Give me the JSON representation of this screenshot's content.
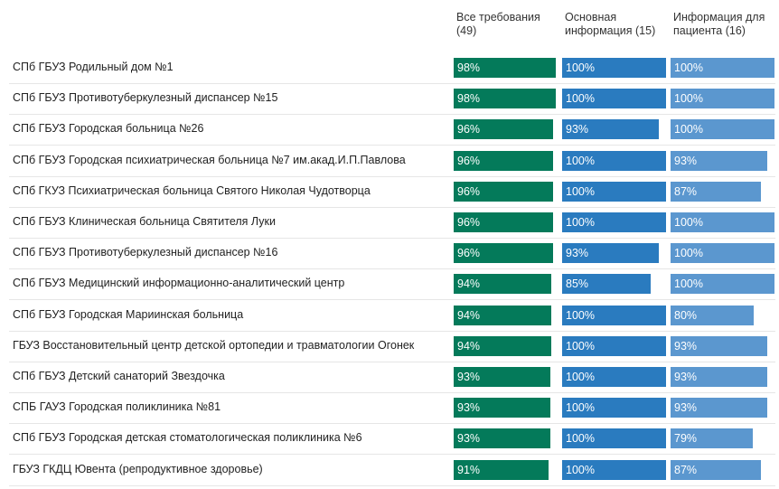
{
  "chart_data": {
    "type": "bar",
    "colors": [
      "#047a5a",
      "#2a7bbf",
      "#5b97cf"
    ],
    "series": [
      {
        "name": "Все требования\n(49)",
        "values": [
          98,
          98,
          96,
          96,
          96,
          96,
          96,
          94,
          94,
          94,
          93,
          93,
          93,
          91
        ],
        "labels": [
          "98%",
          "98%",
          "96%",
          "96%",
          "96%",
          "96%",
          "96%",
          "94%",
          "94%",
          "94%",
          "93%",
          "93%",
          "93%",
          "91%"
        ]
      },
      {
        "name": "Основная\nинформация (15)",
        "values": [
          100,
          100,
          93,
          100,
          100,
          100,
          93,
          85,
          100,
          100,
          100,
          100,
          100,
          100
        ],
        "labels": [
          "100%",
          "100%",
          "93%",
          "100%",
          "100%",
          "100%",
          "93%",
          "85%",
          "100%",
          "100%",
          "100%",
          "100%",
          "100%",
          "100%"
        ]
      },
      {
        "name": "Информация для\nпациента (16)",
        "values": [
          100,
          100,
          100,
          93,
          87,
          100,
          100,
          100,
          80,
          93,
          93,
          93,
          79,
          87
        ],
        "labels": [
          "100%",
          "100%",
          "100%",
          "93%",
          "87%",
          "100%",
          "100%",
          "100%",
          "80%",
          "93%",
          "93%",
          "93%",
          "79%",
          "87%"
        ]
      }
    ],
    "categories": [
      "СПб ГБУЗ Родильный дом №1",
      "СПб ГБУЗ Противотуберкулезный диспансер №15",
      "СПб ГБУЗ Городская больница №26",
      "СПб ГБУЗ Городская психиатрическая больница №7 им.акад.И.П.Павлова",
      "СПб ГКУЗ Психиатрическая больница Святого Николая Чудотворца",
      "СПб ГБУЗ Клиническая больница Святителя Луки",
      "СПб ГБУЗ Противотуберкулезный диспансер №16",
      "СПб ГБУЗ Медицинский информационно-аналитический центр",
      "СПб ГБУЗ Городская Мариинская больница",
      "ГБУЗ Восстановительный центр детской ортопедии и травматологии Огонек",
      "СПб ГБУЗ Детский санаторий Звездочка",
      "СПБ ГАУЗ Городская поликлиника №81",
      "СПб ГБУЗ Городская детская стоматологическая поликлиника №6",
      "ГБУЗ ГКДЦ Ювента (репродуктивное здоровье)"
    ],
    "xlim": [
      0,
      100
    ]
  }
}
